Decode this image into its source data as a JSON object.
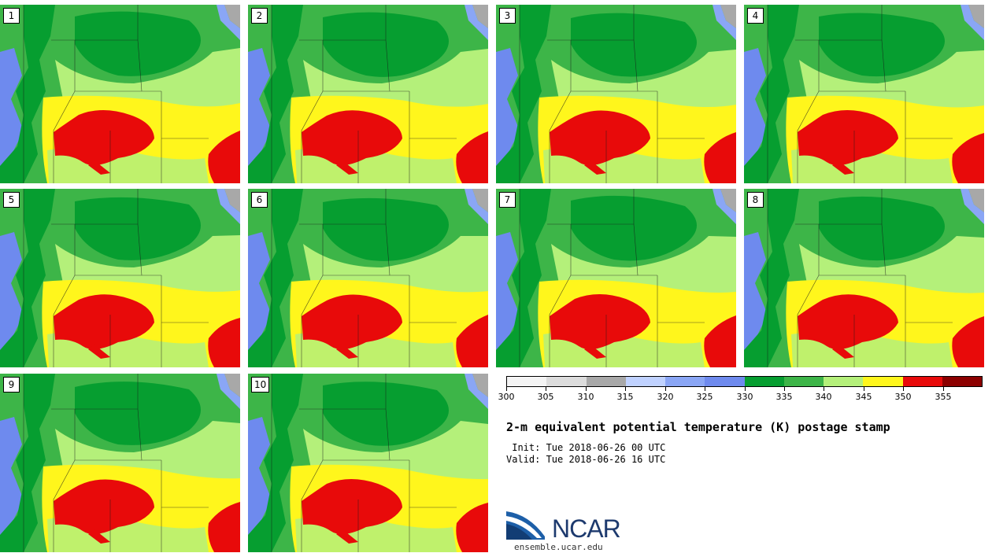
{
  "members": [
    {
      "label": "1"
    },
    {
      "label": "2"
    },
    {
      "label": "3"
    },
    {
      "label": "4"
    },
    {
      "label": "5"
    },
    {
      "label": "6"
    },
    {
      "label": "7"
    },
    {
      "label": "8"
    },
    {
      "label": "9"
    },
    {
      "label": "10"
    }
  ],
  "colorbar": {
    "ticks": [
      "300",
      "305",
      "310",
      "315",
      "320",
      "325",
      "330",
      "335",
      "340",
      "345",
      "350",
      "355"
    ],
    "colors": [
      "#f4f4f4",
      "#dcdcdc",
      "#a8a8a8",
      "#c0d2ff",
      "#8aa6f5",
      "#6e8aee",
      "#069e30",
      "#3db548",
      "#b4f07a",
      "#fff61c",
      "#e80a0a",
      "#8c0000"
    ]
  },
  "title": "2-m equivalent potential temperature (K) postage stamp",
  "init": " Init: Tue 2018-06-26 00 UTC",
  "valid": "Valid: Tue 2018-06-26 16 UTC",
  "logo": {
    "name": "NCAR",
    "url": "ensemble.ucar.edu"
  },
  "map_colors": {
    "dark_green": "#069e30",
    "mid_green": "#3db548",
    "light_green": "#b4f07a",
    "yellow": "#fff61c",
    "red": "#e80a0a",
    "blue": "#6e8aee",
    "light_blue": "#8aa6f5",
    "gray": "#a8a8a8"
  }
}
